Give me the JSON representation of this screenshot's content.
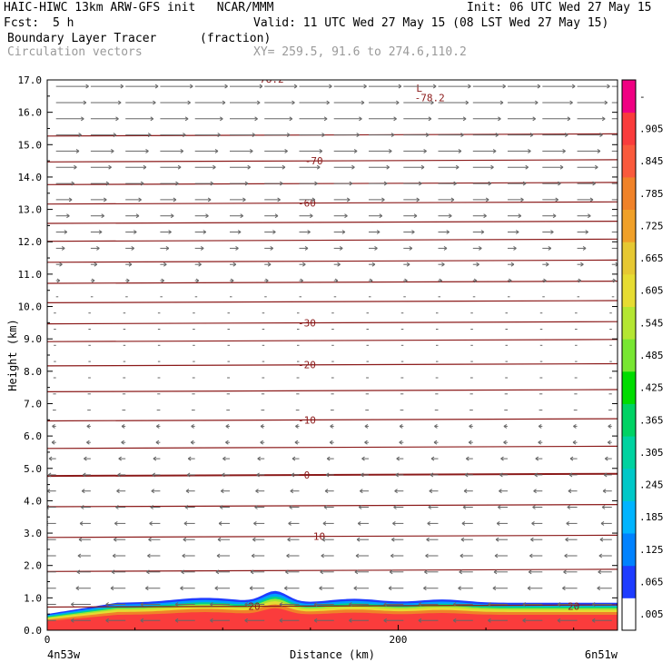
{
  "header": {
    "title_left": "HAIC-HIWC 13km ARW-GFS init   NCAR/MMM",
    "init": "Init: 06 UTC Wed 27 May 15",
    "fcst_label": "Fcst:",
    "fcst_value": "5 h",
    "valid": "Valid: 11 UTC Wed 27 May 15 (08 LST Wed 27 May 15)",
    "field1": "Boundary Layer Tracer",
    "field1_units": "(fraction)",
    "field2": "Circulation vectors",
    "xy": "XY= 259.5, 91.6 to 274.6,110.2"
  },
  "chart_data": {
    "type": "heatmap",
    "ylabel": "Height (km)",
    "xlabel": "Distance (km)",
    "x_left_label": "4n53w",
    "x_right_label": "6n51w",
    "xlim": [
      0,
      325
    ],
    "ylim": [
      0,
      17
    ],
    "xticks": [
      0,
      200
    ],
    "yticks": [
      0.0,
      1.0,
      2.0,
      3.0,
      4.0,
      5.0,
      6.0,
      7.0,
      8.0,
      9.0,
      10.0,
      11.0,
      12.0,
      13.0,
      14.0,
      15.0,
      16.0,
      17.0
    ],
    "colorbar": {
      "labels": [
        ".005",
        ".065",
        ".125",
        ".185",
        ".245",
        ".305",
        ".365",
        ".425",
        ".485",
        ".545",
        ".605",
        ".665",
        ".725",
        ".785",
        ".845",
        ".905",
        "-"
      ],
      "colors": [
        "#ffffff",
        "#1e3cff",
        "#00a0ff",
        "#00c8c8",
        "#00d28c",
        "#00dc00",
        "#a0e632",
        "#e6dc32",
        "#e6af2d",
        "#f08228",
        "#fa3c3c",
        "#f00082"
      ]
    },
    "temperature_contours": [
      {
        "label": "20",
        "height_km": 0.75
      },
      {
        "label": "10",
        "height_km": 2.9
      },
      {
        "label": "0",
        "height_km": 4.8
      },
      {
        "label": "-10",
        "height_km": 6.5
      },
      {
        "label": "-20",
        "height_km": 8.2
      },
      {
        "label": "-30",
        "height_km": 9.5
      },
      {
        "label": "-60",
        "height_km": 13.2
      },
      {
        "label": "-70",
        "height_km": 14.5
      }
    ],
    "minimum_label": {
      "mark": "L",
      "value": "-78.2",
      "partial": "78.2"
    },
    "series": [
      {
        "name": "Boundary Layer Tracer"
      }
    ]
  }
}
